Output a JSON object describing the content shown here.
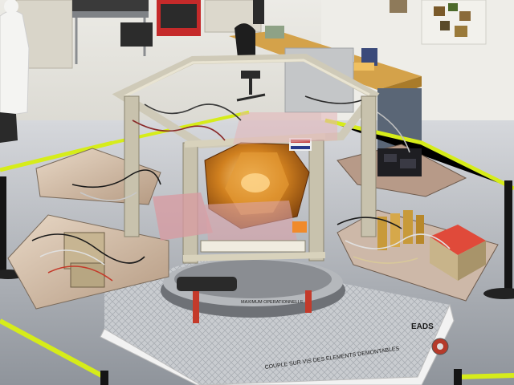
{
  "photo": {
    "labels": {
      "mount_plate": "MAXIMUM OPERATIONNELLE",
      "stand_warning": "COUPLE SUR VIS DES ELEMENTS DEMONTABLES",
      "manufacturer": "EADS"
    },
    "colors": {
      "floor": "#b8bcc2",
      "wall": "#e3e2dc",
      "gold_foil": "#c8781e",
      "frame": "#cfcab8",
      "tape": "#d6ec1a",
      "red_box": "#d8362a"
    }
  }
}
